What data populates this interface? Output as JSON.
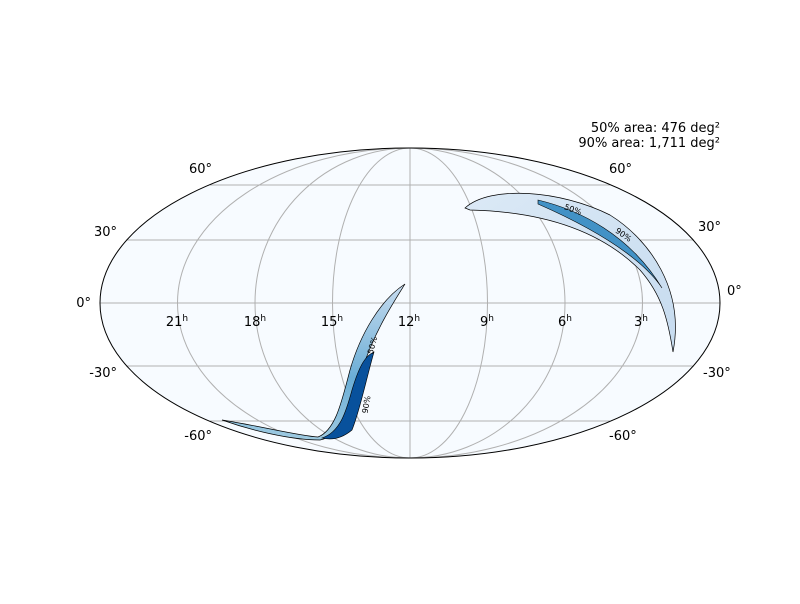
{
  "map": {
    "area_labels": [
      "50% area: 476 deg²",
      "90% area: 1,711 deg²"
    ],
    "ra_labels": [
      {
        "hours": "21",
        "unit": "h"
      },
      {
        "hours": "18",
        "unit": "h"
      },
      {
        "hours": "15",
        "unit": "h"
      },
      {
        "hours": "12",
        "unit": "h"
      },
      {
        "hours": "9",
        "unit": "h"
      },
      {
        "hours": "6",
        "unit": "h"
      },
      {
        "hours": "3",
        "unit": "h"
      }
    ],
    "dec_labels": [
      "60°",
      "30°",
      "0°",
      "-30°",
      "-60°"
    ],
    "contour_labels": [
      "50%",
      "90%"
    ]
  }
}
